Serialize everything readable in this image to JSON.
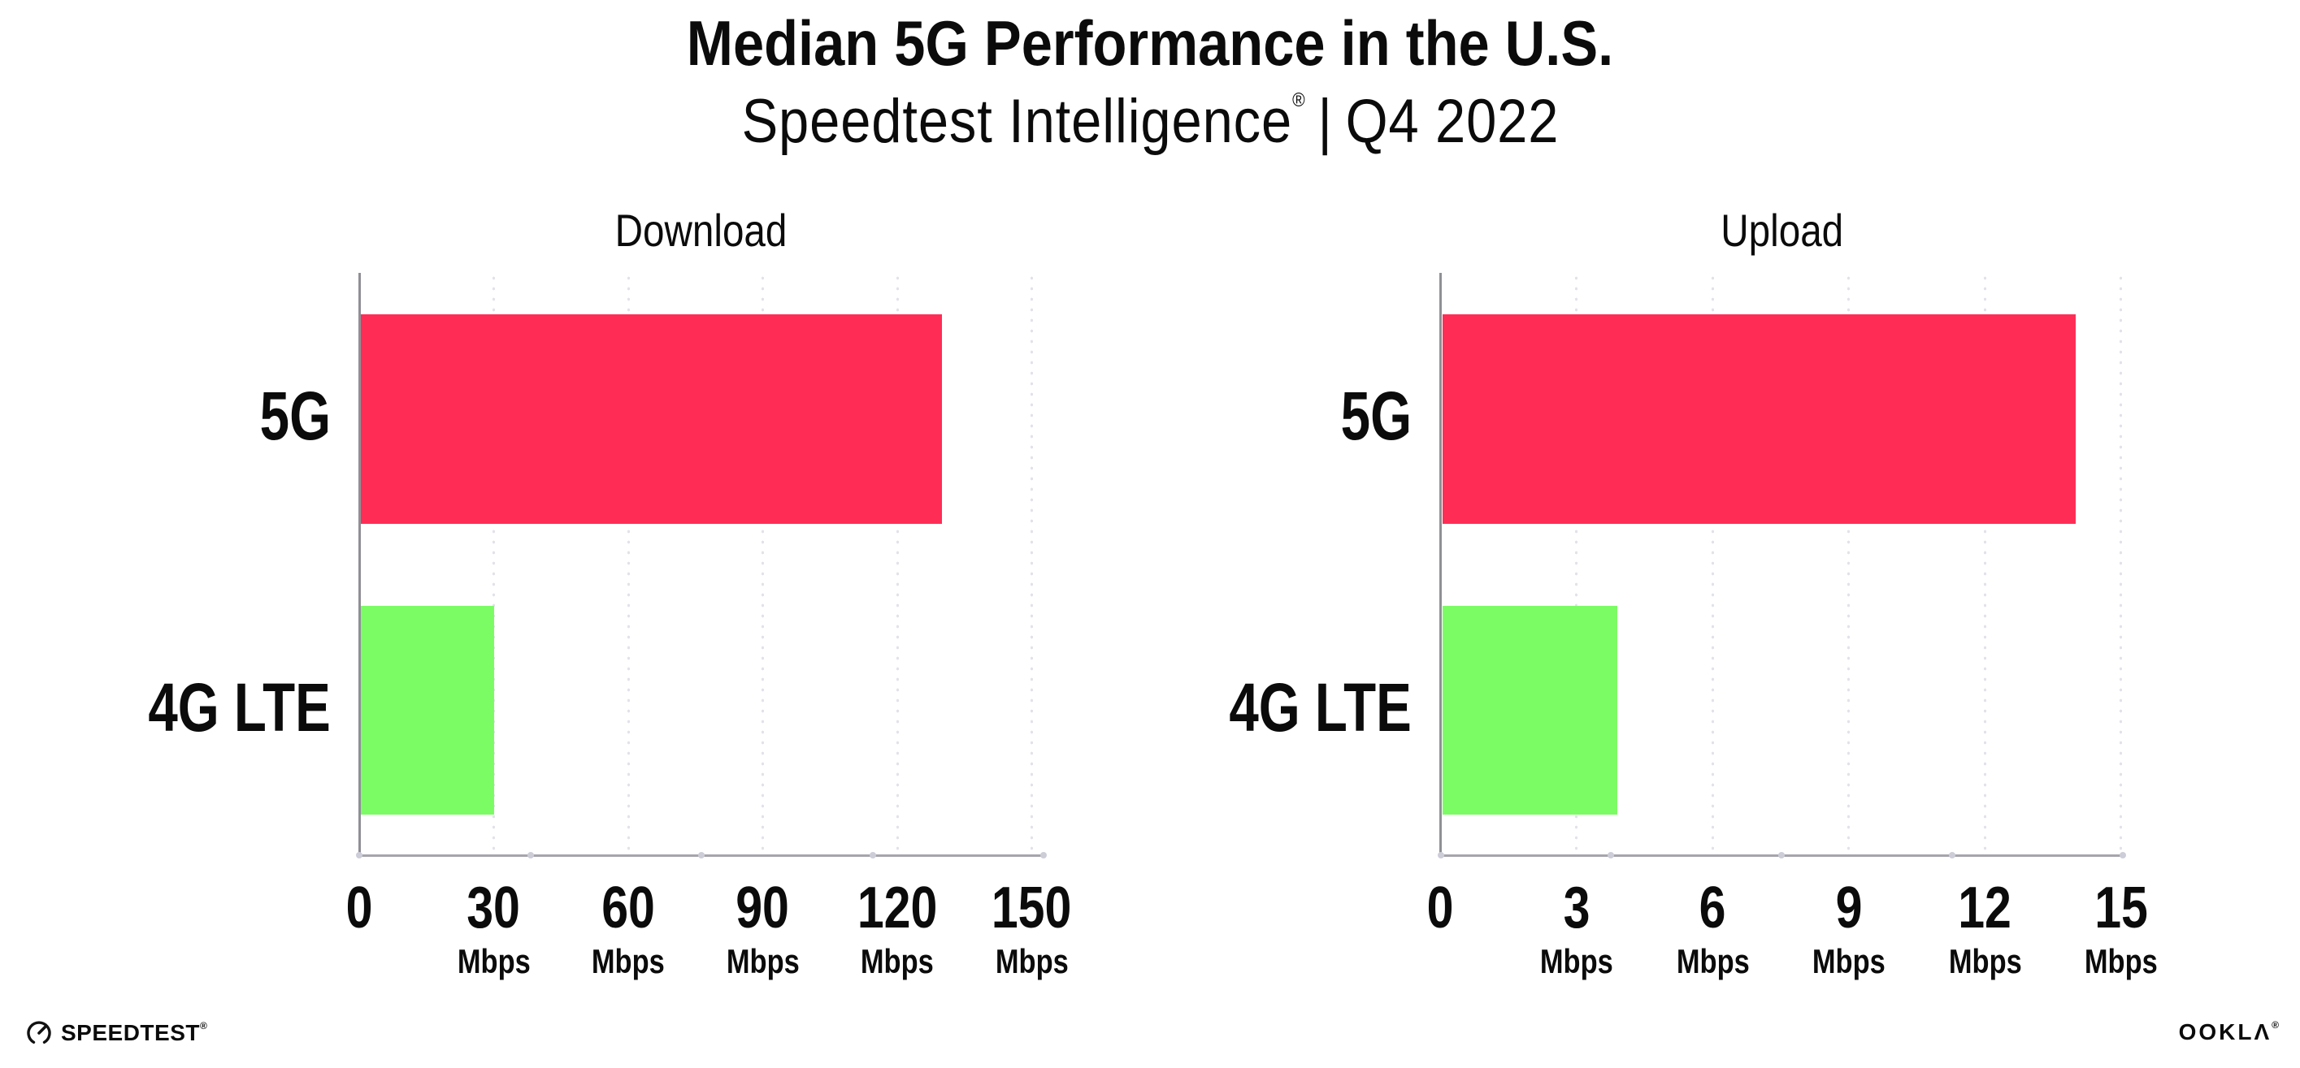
{
  "title": "Median 5G Performance in the U.S.",
  "subtitle": {
    "brand": "Speedtest Intelligence",
    "mark": "®",
    "separator": "|",
    "period": "Q4 2022"
  },
  "colors": {
    "bar_5g": "#FF2D55",
    "bar_4g_lte": "#7CFC64",
    "axis": "#A5A5AC",
    "grid_dots": "#E2E2EA",
    "text": "#0B0B0B"
  },
  "chart_data": [
    {
      "type": "bar",
      "orientation": "horizontal",
      "title": "Download",
      "unit": "Mbps",
      "categories": [
        "5G",
        "4G LTE"
      ],
      "values": [
        130,
        30
      ],
      "colors": [
        "#FF2D55",
        "#7CFC64"
      ],
      "xlim": [
        0,
        150
      ],
      "ticks": [
        0,
        30,
        60,
        90,
        120,
        150
      ],
      "grid": "dotted-vertical",
      "legend": "none"
    },
    {
      "type": "bar",
      "orientation": "horizontal",
      "title": "Upload",
      "unit": "Mbps",
      "categories": [
        "5G",
        "4G LTE"
      ],
      "values": [
        14,
        3.9
      ],
      "colors": [
        "#FF2D55",
        "#7CFC64"
      ],
      "xlim": [
        0,
        15
      ],
      "ticks": [
        0,
        3,
        6,
        9,
        12,
        15
      ],
      "grid": "dotted-vertical",
      "legend": "none"
    }
  ],
  "footer": {
    "speedtest_label": "SPEEDTEST",
    "speedtest_mark": "®",
    "ookla_label": "OOKLΛ",
    "ookla_mark": "®"
  }
}
